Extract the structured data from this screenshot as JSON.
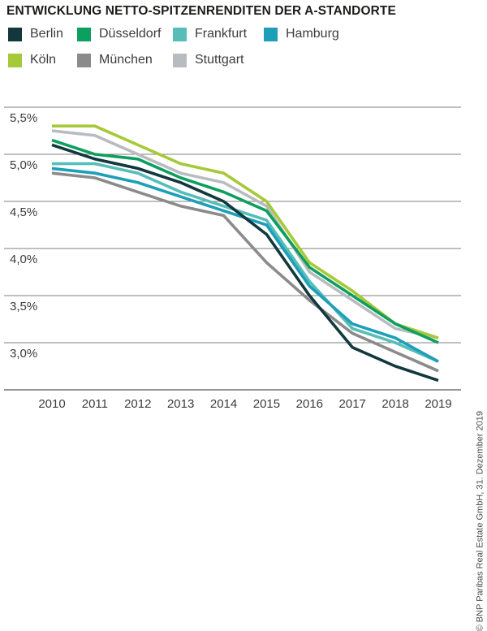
{
  "page": {
    "caption": "© BNP Paribas Real Estate GmbH, 31. Dezember 2019"
  },
  "chart_data": {
    "type": "line",
    "title": "ENTWICKLUNG NETTO-SPITZENRENDITEN DER A-STANDORTE",
    "xlabel": "",
    "ylabel": "",
    "grid": true,
    "legend_position": "top-left",
    "x": [
      2010,
      2011,
      2012,
      2013,
      2014,
      2015,
      2016,
      2017,
      2018,
      2019
    ],
    "y_axis": {
      "min": 2.5,
      "max": 5.5,
      "ticks": [
        {
          "label": "5,5%",
          "value": 5.5
        },
        {
          "label": "5,0%",
          "value": 5.0
        },
        {
          "label": "4,5%",
          "value": 4.5
        },
        {
          "label": "4,0%",
          "value": 4.0
        },
        {
          "label": "3,5%",
          "value": 3.5
        },
        {
          "label": "3,0%",
          "value": 3.0
        }
      ]
    },
    "unit": "%",
    "series": [
      {
        "name": "Berlin",
        "color": "#12383d",
        "values": [
          5.1,
          4.95,
          4.85,
          4.7,
          4.5,
          4.15,
          3.5,
          2.95,
          2.75,
          2.6
        ]
      },
      {
        "name": "Düsseldorf",
        "color": "#0d9f5f",
        "values": [
          5.15,
          5.0,
          4.95,
          4.75,
          4.6,
          4.4,
          3.8,
          3.5,
          3.2,
          3.0
        ]
      },
      {
        "name": "Frankfurt",
        "color": "#57bdb9",
        "values": [
          4.9,
          4.9,
          4.8,
          4.6,
          4.45,
          4.3,
          3.65,
          3.15,
          3.0,
          2.8
        ]
      },
      {
        "name": "Hamburg",
        "color": "#1d9fb8",
        "values": [
          4.85,
          4.8,
          4.7,
          4.55,
          4.4,
          4.25,
          3.6,
          3.2,
          3.05,
          2.8
        ]
      },
      {
        "name": "Köln",
        "color": "#a6c939",
        "values": [
          5.3,
          5.3,
          5.1,
          4.9,
          4.8,
          4.5,
          3.85,
          3.55,
          3.2,
          3.05
        ]
      },
      {
        "name": "München",
        "color": "#8b8b8b",
        "values": [
          4.8,
          4.75,
          4.6,
          4.45,
          4.35,
          3.85,
          3.45,
          3.1,
          2.9,
          2.7
        ]
      },
      {
        "name": "Stuttgart",
        "color": "#b8bcc1",
        "values": [
          5.25,
          5.2,
          5.0,
          4.8,
          4.7,
          4.45,
          3.75,
          3.45,
          3.15,
          3.05
        ]
      }
    ]
  }
}
